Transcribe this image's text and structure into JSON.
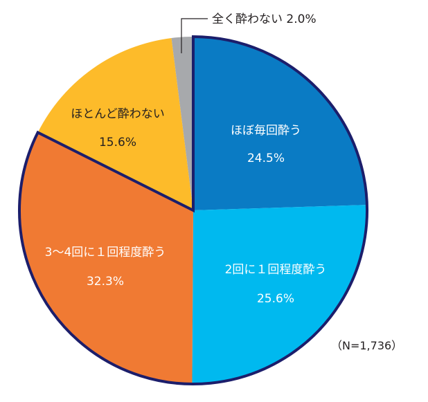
{
  "chart_data": {
    "type": "pie",
    "title": "",
    "sample_size": "（N=1,736）",
    "start_angle_deg": 0,
    "direction": "clockwise",
    "slices": [
      {
        "label": "ほぼ毎回酔う",
        "value": 24.5,
        "value_label": "24.5%",
        "color": "#0A7BC4",
        "label_color": "#ffffff"
      },
      {
        "label": "2回に１回程度酔う",
        "value": 25.6,
        "value_label": "25.6%",
        "color": "#00B9EF",
        "label_color": "#ffffff"
      },
      {
        "label": "3～4回に１回程度酔う",
        "value": 32.3,
        "value_label": "32.3%",
        "color": "#F07A33",
        "label_color": "#ffffff"
      },
      {
        "label": "ほとんど酔わない",
        "value": 15.6,
        "value_label": "15.6%",
        "color": "#FDBB2A",
        "label_color": "#231f20"
      },
      {
        "label": "全く酔わない",
        "value": 2.0,
        "value_label": "2.0%",
        "color": "#A7A9AC",
        "label_color": "#231f20",
        "callout": true
      }
    ],
    "highlight_outline": {
      "color": "#1C1E6B",
      "slices": [
        0,
        1,
        2
      ]
    }
  },
  "labels": {
    "s0_name": "ほぼ毎回酔う",
    "s0_pct": "24.5%",
    "s1_name": "2回に１回程度酔う",
    "s1_pct": "25.6%",
    "s2_name": "3～4回に１回程度酔う",
    "s2_pct": "32.3%",
    "s3_name": "ほとんど酔わない",
    "s3_pct": "15.6%",
    "s4_callout": "全く酔わない 2.0%",
    "sample_size": "（N=1,736）"
  }
}
